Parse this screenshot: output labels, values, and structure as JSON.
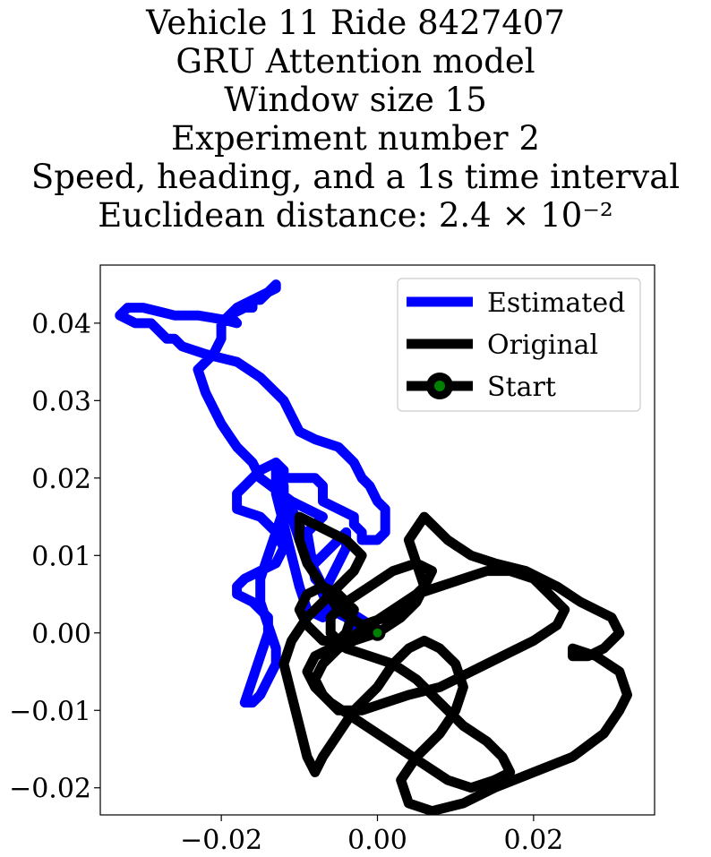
{
  "title_lines": [
    "Vehicle 11 Ride 8427407",
    "GRU Attention model",
    "Window size 15",
    "Experiment number 2",
    "Speed, heading, and a 1s time interval",
    "Euclidean distance: 2.4 × 10⁻²"
  ],
  "chart_data": {
    "type": "line",
    "title": "Vehicle 11 Ride 8427407 / GRU Attention model / Window size 15 / Experiment number 2 / Speed, heading, and a 1s time interval / Euclidean distance: 2.4 × 10⁻²",
    "xlabel": "",
    "ylabel": "",
    "xlim": [
      -0.0355,
      0.0355
    ],
    "ylim": [
      -0.0235,
      0.0475
    ],
    "xticks": [
      -0.02,
      0.0,
      0.02
    ],
    "xtick_labels": [
      "−0.02",
      "0.00",
      "0.02"
    ],
    "yticks": [
      0.04,
      0.03,
      0.02,
      0.01,
      0.0,
      -0.01,
      -0.02
    ],
    "ytick_labels": [
      "0.04",
      "0.03",
      "0.02",
      "0.01",
      "0.00",
      "−0.01",
      "−0.02"
    ],
    "grid": false,
    "legend_position": "top-right",
    "series": [
      {
        "name": "Estimated",
        "color": "#0000ff",
        "x": [
          -0.0001,
          -0.004,
          -0.008,
          -0.009,
          -0.007,
          -0.011,
          -0.015,
          -0.016,
          -0.018,
          -0.02,
          -0.022,
          -0.023,
          -0.021,
          -0.02,
          -0.02,
          -0.019,
          -0.017,
          -0.016,
          -0.016,
          -0.015,
          -0.014,
          -0.013,
          -0.013,
          -0.014,
          -0.016,
          -0.018,
          -0.019,
          -0.018,
          -0.02,
          -0.023,
          -0.026,
          -0.028,
          -0.03,
          -0.032,
          -0.033,
          -0.031,
          -0.029,
          -0.028,
          -0.027,
          -0.026,
          -0.025,
          -0.022,
          -0.018,
          -0.015,
          -0.013,
          -0.012,
          -0.011,
          -0.01,
          -0.008,
          -0.005,
          -0.003,
          -0.002,
          -0.001,
          0.0,
          0.001,
          0.001,
          0.001,
          0.0,
          -0.002,
          -0.002,
          -0.003,
          -0.003,
          -0.005,
          -0.007,
          -0.007,
          -0.008,
          -0.01,
          -0.012,
          -0.012,
          -0.013,
          -0.015,
          -0.016,
          -0.017,
          -0.018,
          -0.018,
          -0.015,
          -0.013,
          -0.012,
          -0.013,
          -0.015,
          -0.017,
          -0.018,
          -0.018,
          -0.016,
          -0.014,
          -0.014,
          -0.015,
          -0.016,
          -0.017,
          -0.016,
          -0.015,
          -0.014,
          -0.013,
          -0.013,
          -0.014,
          -0.015,
          -0.015,
          -0.014,
          -0.013,
          -0.012,
          -0.012,
          -0.013,
          -0.013,
          -0.012,
          -0.011,
          -0.01,
          -0.009,
          -0.007,
          -0.006,
          -0.008,
          -0.01,
          -0.011,
          -0.011,
          -0.01,
          -0.009,
          -0.008,
          -0.007,
          -0.005,
          -0.004,
          -0.004,
          -0.005,
          -0.006,
          -0.007,
          -0.006,
          -0.004,
          -0.003,
          -0.002,
          -0.001,
          0.0
        ],
        "y": [
          0.0005,
          0.003,
          0.007,
          0.013,
          0.015,
          0.017,
          0.02,
          0.022,
          0.024,
          0.027,
          0.031,
          0.034,
          0.036,
          0.038,
          0.04,
          0.041,
          0.042,
          0.042,
          0.043,
          0.043,
          0.044,
          0.0445,
          0.045,
          0.044,
          0.043,
          0.042,
          0.041,
          0.04,
          0.0405,
          0.041,
          0.041,
          0.0415,
          0.042,
          0.042,
          0.041,
          0.04,
          0.04,
          0.039,
          0.038,
          0.038,
          0.037,
          0.036,
          0.035,
          0.033,
          0.031,
          0.03,
          0.028,
          0.026,
          0.025,
          0.024,
          0.022,
          0.02,
          0.019,
          0.017,
          0.016,
          0.015,
          0.013,
          0.012,
          0.012,
          0.013,
          0.014,
          0.015,
          0.016,
          0.017,
          0.019,
          0.02,
          0.02,
          0.02,
          0.021,
          0.022,
          0.021,
          0.02,
          0.019,
          0.018,
          0.016,
          0.015,
          0.013,
          0.011,
          0.009,
          0.008,
          0.007,
          0.006,
          0.005,
          0.004,
          0.002,
          0.0,
          -0.003,
          -0.006,
          -0.009,
          -0.009,
          -0.008,
          -0.006,
          -0.004,
          -0.002,
          0.001,
          0.004,
          0.007,
          0.01,
          0.013,
          0.016,
          0.019,
          0.022,
          0.018,
          0.014,
          0.01,
          0.006,
          0.003,
          0.002,
          0.004,
          0.008,
          0.012,
          0.015,
          0.016,
          0.014,
          0.011,
          0.009,
          0.01,
          0.012,
          0.013,
          0.011,
          0.009,
          0.007,
          0.005,
          0.003,
          0.002,
          0.001,
          0.0,
          0.0,
          0.0005
        ]
      },
      {
        "name": "Original",
        "color": "#000000",
        "x": [
          0.0,
          0.003,
          0.005,
          0.006,
          0.005,
          0.004,
          0.006,
          0.009,
          0.012,
          0.015,
          0.019,
          0.023,
          0.026,
          0.03,
          0.031,
          0.029,
          0.027,
          0.025,
          0.025,
          0.028,
          0.031,
          0.032,
          0.031,
          0.029,
          0.025,
          0.02,
          0.015,
          0.011,
          0.007,
          0.004,
          0.003,
          0.005,
          0.008,
          0.01,
          0.011,
          0.01,
          0.008,
          0.006,
          0.004,
          0.002,
          0.0,
          -0.003,
          -0.005,
          -0.007,
          -0.008,
          -0.009,
          -0.01,
          -0.011,
          -0.012,
          -0.011,
          -0.009,
          -0.007,
          -0.005,
          -0.003,
          -0.002,
          -0.004,
          -0.006,
          -0.008,
          -0.01,
          -0.01,
          -0.009,
          -0.007,
          -0.005,
          -0.002,
          0.001,
          0.004,
          0.006,
          0.007,
          0.005,
          0.002,
          -0.001,
          -0.004,
          -0.006,
          -0.006,
          -0.004,
          -0.001,
          0.002,
          0.005,
          0.008,
          0.011,
          0.014,
          0.016,
          0.017,
          0.015,
          0.012,
          0.009,
          0.006,
          0.003,
          0.0,
          -0.003,
          -0.006,
          -0.008,
          -0.009,
          -0.008,
          -0.006,
          -0.004,
          -0.003,
          -0.005,
          -0.007,
          -0.009,
          -0.01,
          -0.009,
          -0.007,
          -0.004,
          -0.001,
          0.002,
          0.005,
          0.008,
          0.011,
          0.014,
          0.017,
          0.02,
          0.022,
          0.024,
          0.023,
          0.02,
          0.016,
          0.012,
          0.008,
          0.004,
          0.001,
          -0.002,
          -0.005,
          -0.007,
          -0.008,
          -0.007,
          -0.005,
          -0.003,
          0.0
        ],
        "y": [
          0.0,
          0.002,
          0.004,
          0.006,
          0.009,
          0.012,
          0.015,
          0.012,
          0.01,
          0.009,
          0.008,
          0.006,
          0.004,
          0.002,
          0.0,
          -0.002,
          -0.003,
          -0.003,
          -0.002,
          -0.003,
          -0.005,
          -0.008,
          -0.01,
          -0.013,
          -0.016,
          -0.018,
          -0.02,
          -0.022,
          -0.023,
          -0.022,
          -0.019,
          -0.016,
          -0.013,
          -0.01,
          -0.007,
          -0.004,
          -0.002,
          -0.001,
          -0.002,
          -0.004,
          -0.007,
          -0.01,
          -0.013,
          -0.016,
          -0.018,
          -0.016,
          -0.012,
          -0.008,
          -0.004,
          -0.001,
          0.002,
          0.004,
          0.006,
          0.008,
          0.01,
          0.012,
          0.013,
          0.014,
          0.015,
          0.012,
          0.009,
          0.006,
          0.003,
          0.001,
          0.002,
          0.004,
          0.006,
          0.008,
          0.009,
          0.008,
          0.006,
          0.004,
          0.002,
          0.0,
          -0.002,
          -0.003,
          -0.004,
          -0.006,
          -0.009,
          -0.012,
          -0.014,
          -0.016,
          -0.018,
          -0.019,
          -0.02,
          -0.019,
          -0.017,
          -0.015,
          -0.013,
          -0.011,
          -0.009,
          -0.007,
          -0.005,
          -0.003,
          -0.002,
          0.0,
          0.003,
          0.005,
          0.006,
          0.005,
          0.003,
          0.001,
          -0.001,
          -0.001,
          0.001,
          0.003,
          0.005,
          0.006,
          0.007,
          0.008,
          0.008,
          0.007,
          0.005,
          0.003,
          0.001,
          -0.001,
          -0.003,
          -0.005,
          -0.007,
          -0.008,
          -0.009,
          -0.01,
          -0.01,
          -0.008,
          -0.006,
          -0.004,
          -0.002,
          -0.001,
          0.0
        ]
      },
      {
        "name": "Start",
        "color": "#000000",
        "marker_face_color": "#008000",
        "x": [
          0.0
        ],
        "y": [
          0.0
        ]
      }
    ]
  }
}
